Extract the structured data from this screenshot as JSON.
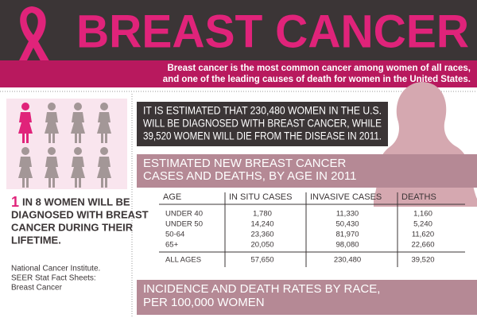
{
  "header": {
    "title": "BREAST CANCER",
    "subtitle_lines": [
      "Breast cancer is the most common cancer among women of all races,",
      "and one of the leading causes of death for women in the United States."
    ]
  },
  "stat": {
    "highlight": "1",
    "lines": [
      "IN 8 WOMEN WILL BE",
      "DIAGNOSED WITH BREAST",
      "CANCER DURING THEIR",
      "LIFETIME."
    ]
  },
  "source": [
    "National Cancer Institute.",
    "SEER Stat Fact Sheets:",
    "Breast Cancer"
  ],
  "estimate": [
    "IT IS ESTIMATED THAT 230,480 WOMEN IN THE U.S.",
    "WILL BE DIAGNOSED WITH BREAST CANCER, WHILE",
    "39,520 WOMEN WILL DIE FROM THE DISEASE IN 2011."
  ],
  "table_title": [
    "ESTIMATED NEW BREAST CANCER",
    "CASES AND DEATHS, BY AGE IN 2011"
  ],
  "table": {
    "columns": [
      "AGE",
      "IN SITU CASES",
      "INVASIVE CASES",
      "DEATHS"
    ],
    "rows": [
      [
        "UNDER 40",
        "1,780",
        "11,330",
        "1,160"
      ],
      [
        "UNDER 50",
        "14,240",
        "50,430",
        "5,240"
      ],
      [
        "50-64",
        "23,360",
        "81,970",
        "11,620"
      ],
      [
        "65+",
        "20,050",
        "98,080",
        "22,660"
      ]
    ],
    "total": [
      "ALL AGES",
      "57,650",
      "230,480",
      "39,520"
    ]
  },
  "next_section": [
    "INCIDENCE AND DEATH RATES BY RACE,",
    "PER 100,000 WOMEN"
  ]
}
